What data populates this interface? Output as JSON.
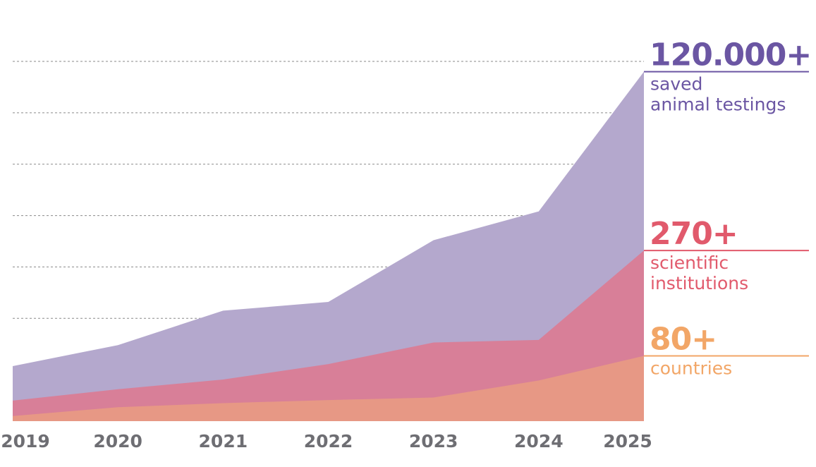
{
  "chart_data": {
    "type": "area",
    "x": [
      "2019",
      "2020",
      "2021",
      "2022",
      "2023",
      "2024",
      "2025"
    ],
    "ylim": [
      0,
      7
    ],
    "grid": true,
    "series": [
      {
        "key": "animals",
        "values": [
          1.07,
          1.48,
          2.15,
          2.32,
          3.52,
          4.08,
          6.8
        ],
        "color": "#b4a8cd",
        "accent": "#6b56a3",
        "callout_value": "120.000+",
        "callout_lines": [
          "saved",
          "animal testings"
        ]
      },
      {
        "key": "institutions",
        "values": [
          0.4,
          0.62,
          0.81,
          1.11,
          1.53,
          1.58,
          3.32
        ],
        "color": "#d87f98",
        "accent": "#e15a6c",
        "callout_value": "270+",
        "callout_lines": [
          "scientific",
          "institutions"
        ]
      },
      {
        "key": "countries",
        "values": [
          0.1,
          0.27,
          0.35,
          0.41,
          0.46,
          0.79,
          1.27
        ],
        "color": "#e79885",
        "accent": "#f2a667",
        "callout_value": "80+",
        "callout_lines": [
          "countries"
        ]
      }
    ]
  }
}
